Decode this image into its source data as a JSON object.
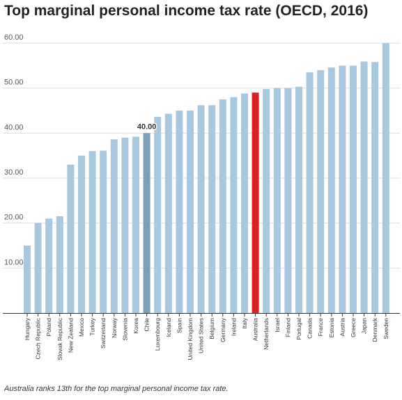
{
  "chart_data": {
    "type": "bar",
    "title": "Top marginal personal income tax rate (OECD, 2016)",
    "caption": "Australia ranks 13th for the top marginal personal income tax rate.",
    "xlabel": "",
    "ylabel": "",
    "ylim": [
      0,
      60
    ],
    "yticks": [
      "10.00",
      "20.00",
      "30.00",
      "40.00",
      "50.00",
      "60.00"
    ],
    "grid": true,
    "legend": "none",
    "categories": [
      "Hungary",
      "Czech Republic",
      "Poland",
      "Slovak Republic",
      "New Zealand",
      "Mexico",
      "Turkey",
      "Switzerland",
      "Norway",
      "Slovenia",
      "Korea",
      "Chile",
      "Luxembourg",
      "Iceland",
      "Spain",
      "United Kingdom",
      "United States",
      "Belgium",
      "Germany",
      "Ireland",
      "Italy",
      "Australia",
      "Netherlands",
      "Israel",
      "Finland",
      "Portugal",
      "Canada",
      "France",
      "Estonia",
      "Austria",
      "Greece",
      "Japan",
      "Denmark",
      "Sweden"
    ],
    "values": [
      15.0,
      20.0,
      21.0,
      21.5,
      33.0,
      35.0,
      36.0,
      36.1,
      38.6,
      39.0,
      39.2,
      40.0,
      43.6,
      44.3,
      45.0,
      45.0,
      46.2,
      46.2,
      47.5,
      48.0,
      48.8,
      49.0,
      49.8,
      50.0,
      50.0,
      50.3,
      53.5,
      54.0,
      54.6,
      55.0,
      55.0,
      55.9,
      55.8,
      60.0
    ],
    "highlights": [
      {
        "category": "Chile",
        "color": "#7f9db3",
        "label": "40.00"
      },
      {
        "category": "Australia",
        "color": "#e02020",
        "label": ""
      }
    ],
    "colors": {
      "bar": "#a8c8df",
      "grid": "#dddddd",
      "axis": "#333333"
    }
  }
}
